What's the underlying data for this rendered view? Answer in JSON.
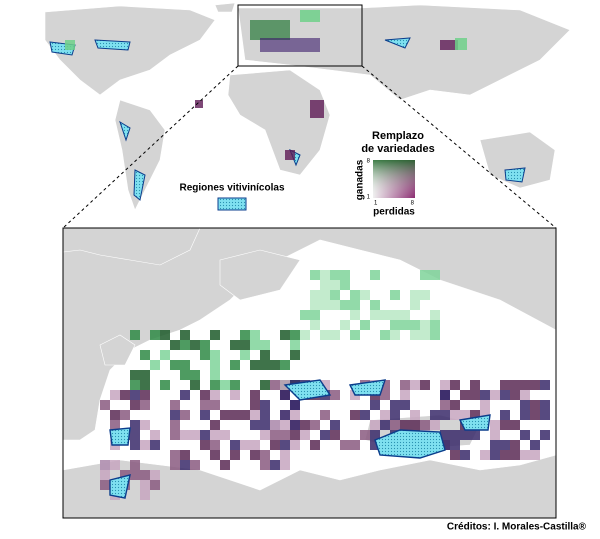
{
  "legend": {
    "title_lines": [
      "Remplazo",
      "de variedades"
    ],
    "y_label": "ganadas",
    "x_label": "perdidas",
    "y_ticks": [
      "8",
      "1"
    ],
    "x_ticks": [
      "1",
      "8"
    ]
  },
  "regions_label": "Regiones vitivinícolas",
  "credits": "Créditos: I. Morales-Castilla®"
}
